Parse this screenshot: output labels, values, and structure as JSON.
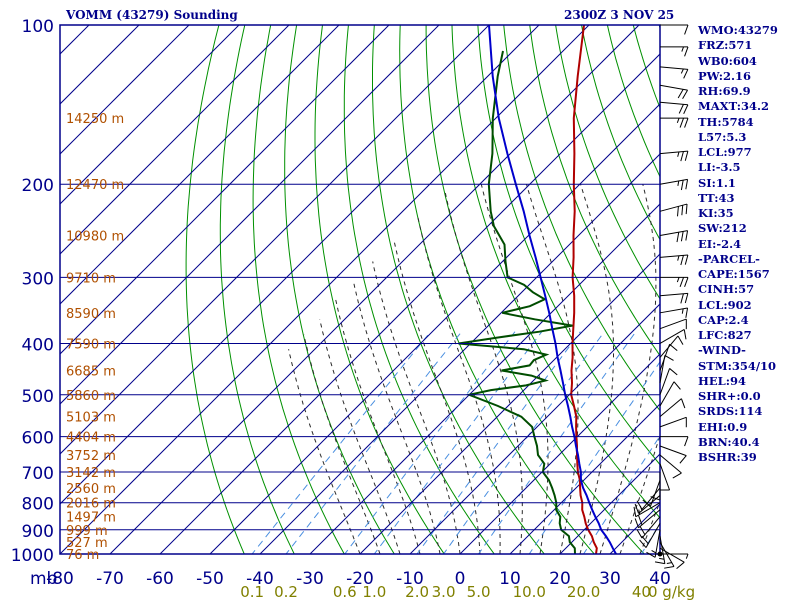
{
  "header": {
    "title": "VOMM (43279) Sounding",
    "time": "2300Z  3 NOV 25"
  },
  "indices": [
    "WMO:43279",
    "FRZ:571",
    "WB0:604",
    "PW:2.16",
    "RH:69.9",
    "MAXT:34.2",
    "TH:5784",
    "L57:5.3",
    "LCL:977",
    "LI:-3.5",
    "SI:1.1",
    "TT:43",
    "KI:35",
    "SW:212",
    "EI:-2.4",
    "-PARCEL-",
    "CAPE:1567",
    "CINH:57",
    "LCL:902",
    "CAP:2.4",
    "LFC:827",
    "-WIND-",
    "STM:354/10",
    "HEL:94",
    "SHR+:0.0",
    "SRDS:114",
    "EHI:0.9",
    "BRN:40.4",
    "BSHR:39"
  ],
  "colors": {
    "frame": "#00008b",
    "isotherm": "#00008b",
    "dry_adiabat": "#009000",
    "moist_adiabat": "#2a2a2a",
    "mixing_ratio": "#4a8fe0",
    "temperature": "#b00000",
    "dewpoint": "#004d00",
    "parcel": "#0000cc",
    "height_label": "#b05000",
    "mixing_label": "#808000",
    "wind": "#000000"
  },
  "chart_data": {
    "type": "skew-t log-p",
    "y_axis": {
      "unit": "mb",
      "range": [
        1000,
        100
      ],
      "scale": "log",
      "ticks": [
        1000,
        900,
        800,
        700,
        600,
        500,
        400,
        300,
        200,
        100
      ]
    },
    "x_axis": {
      "unit": "°C",
      "ticks": [
        -80,
        -70,
        -60,
        -50,
        -40,
        -30,
        -20,
        -10,
        0,
        10,
        20,
        30,
        40
      ],
      "tick_labels": [
        "-80",
        "-70",
        "-60",
        "-50",
        "-40",
        "-30",
        "-20",
        "-10",
        "0",
        "10",
        "20",
        "30",
        "40"
      ],
      "corner_label": "mb",
      "skew_degrees": 45
    },
    "mixing_ratio_labels": [
      "0.1",
      "0.2",
      "0.6",
      "1.0",
      "2.0",
      "3.0",
      "5.0",
      "10.0",
      "20.0",
      "40"
    ],
    "mixing_ratio_values": [
      0.1,
      0.2,
      0.6,
      1.0,
      2.0,
      3.0,
      5.0,
      10.0,
      20.0,
      40.0
    ],
    "mixing_ratio_unit": "g/kg",
    "mixing_ratio_trailing": "0 g/kg",
    "height_labels": [
      {
        "p": 1000,
        "text": "76 m"
      },
      {
        "p": 950,
        "text": "527 m"
      },
      {
        "p": 900,
        "text": "999 m"
      },
      {
        "p": 850,
        "text": "1497 m"
      },
      {
        "p": 800,
        "text": "2016 m"
      },
      {
        "p": 750,
        "text": "2560 m"
      },
      {
        "p": 700,
        "text": "3142 m"
      },
      {
        "p": 650,
        "text": "3752 m"
      },
      {
        "p": 600,
        "text": "4404 m"
      },
      {
        "p": 550,
        "text": "5103 m"
      },
      {
        "p": 500,
        "text": "5860 m"
      },
      {
        "p": 450,
        "text": "6685 m"
      },
      {
        "p": 400,
        "text": "7590 m"
      },
      {
        "p": 350,
        "text": "8590 m"
      },
      {
        "p": 300,
        "text": "9710 m"
      },
      {
        "p": 250,
        "text": "10980 m"
      },
      {
        "p": 200,
        "text": "12470 m"
      },
      {
        "p": 150,
        "text": "14250 m"
      }
    ],
    "series": [
      {
        "key": "temperature",
        "points": [
          [
            1000,
            27.2
          ],
          [
            975,
            26.2
          ],
          [
            950,
            24.4
          ],
          [
            925,
            22.8
          ],
          [
            900,
            20.8
          ],
          [
            875,
            19.0
          ],
          [
            850,
            17.4
          ],
          [
            825,
            15.6
          ],
          [
            800,
            14.2
          ],
          [
            775,
            12.4
          ],
          [
            750,
            10.8
          ],
          [
            725,
            9.2
          ],
          [
            700,
            7.2
          ],
          [
            675,
            5.4
          ],
          [
            650,
            3.6
          ],
          [
            625,
            1.8
          ],
          [
            600,
            -0.2
          ],
          [
            575,
            -2.2
          ],
          [
            550,
            -4.2
          ],
          [
            525,
            -6.8
          ],
          [
            500,
            -9.6
          ],
          [
            475,
            -11.8
          ],
          [
            450,
            -14.4
          ],
          [
            425,
            -16.8
          ],
          [
            400,
            -19.6
          ],
          [
            375,
            -22.4
          ],
          [
            350,
            -25.4
          ],
          [
            325,
            -28.8
          ],
          [
            300,
            -32.8
          ],
          [
            275,
            -36.6
          ],
          [
            250,
            -41.0
          ],
          [
            225,
            -45.6
          ],
          [
            200,
            -51.2
          ],
          [
            175,
            -57.2
          ],
          [
            150,
            -64.4
          ],
          [
            125,
            -72.0
          ],
          [
            100,
            -81.0
          ]
        ]
      },
      {
        "key": "dewpoint",
        "points": [
          [
            1000,
            23.0
          ],
          [
            975,
            21.8
          ],
          [
            950,
            19.6
          ],
          [
            925,
            18.2
          ],
          [
            900,
            15.4
          ],
          [
            875,
            13.8
          ],
          [
            850,
            12.6
          ],
          [
            825,
            10.4
          ],
          [
            800,
            9.0
          ],
          [
            775,
            7.2
          ],
          [
            750,
            5.2
          ],
          [
            725,
            3.0
          ],
          [
            700,
            0.2
          ],
          [
            675,
            -1.2
          ],
          [
            650,
            -4.2
          ],
          [
            625,
            -6.2
          ],
          [
            600,
            -8.6
          ],
          [
            575,
            -11.0
          ],
          [
            550,
            -15.2
          ],
          [
            525,
            -22.0
          ],
          [
            500,
            -30.0
          ],
          [
            490,
            -26.6
          ],
          [
            480,
            -20.5
          ],
          [
            470,
            -17.6
          ],
          [
            460,
            -21.4
          ],
          [
            450,
            -28.4
          ],
          [
            440,
            -23.8
          ],
          [
            430,
            -24.0
          ],
          [
            420,
            -22.6
          ],
          [
            410,
            -28.2
          ],
          [
            400,
            -42.4
          ],
          [
            390,
            -36.0
          ],
          [
            380,
            -28.6
          ],
          [
            370,
            -23.2
          ],
          [
            360,
            -32.0
          ],
          [
            350,
            -39.8
          ],
          [
            340,
            -35.6
          ],
          [
            330,
            -34.0
          ],
          [
            320,
            -37.8
          ],
          [
            310,
            -41.0
          ],
          [
            300,
            -45.8
          ],
          [
            280,
            -49.4
          ],
          [
            260,
            -53.0
          ],
          [
            240,
            -58.8
          ],
          [
            225,
            -62.4
          ],
          [
            200,
            -68.2
          ],
          [
            175,
            -73.6
          ],
          [
            150,
            -80.6
          ],
          [
            125,
            -88.0
          ],
          [
            112,
            -92.0
          ]
        ]
      },
      {
        "key": "parcel",
        "points": [
          [
            1000,
            31.2
          ],
          [
            975,
            29.4
          ],
          [
            950,
            27.6
          ],
          [
            925,
            25.6
          ],
          [
            900,
            23.4
          ],
          [
            875,
            21.6
          ],
          [
            850,
            19.6
          ],
          [
            825,
            17.6
          ],
          [
            800,
            15.6
          ],
          [
            775,
            13.6
          ],
          [
            750,
            11.4
          ],
          [
            725,
            9.4
          ],
          [
            700,
            7.8
          ],
          [
            675,
            5.8
          ],
          [
            650,
            3.8
          ],
          [
            625,
            1.6
          ],
          [
            600,
            -0.6
          ],
          [
            575,
            -3.0
          ],
          [
            550,
            -5.4
          ],
          [
            525,
            -8.0
          ],
          [
            500,
            -10.8
          ],
          [
            475,
            -13.6
          ],
          [
            450,
            -16.6
          ],
          [
            425,
            -19.8
          ],
          [
            400,
            -23.0
          ],
          [
            375,
            -26.6
          ],
          [
            350,
            -30.4
          ],
          [
            325,
            -34.6
          ],
          [
            300,
            -39.2
          ],
          [
            275,
            -44.2
          ],
          [
            250,
            -49.8
          ],
          [
            225,
            -55.8
          ],
          [
            200,
            -62.8
          ],
          [
            175,
            -70.6
          ],
          [
            150,
            -79.4
          ],
          [
            125,
            -89.0
          ],
          [
            100,
            -100.0
          ]
        ]
      }
    ],
    "wind_barbs": [
      {
        "p": 1000,
        "dir": 90,
        "spd": 5
      },
      {
        "p": 975,
        "dir": 120,
        "spd": 10
      },
      {
        "p": 950,
        "dir": 150,
        "spd": 15
      },
      {
        "p": 925,
        "dir": 170,
        "spd": 15
      },
      {
        "p": 900,
        "dir": 190,
        "spd": 15
      },
      {
        "p": 875,
        "dir": 210,
        "spd": 20
      },
      {
        "p": 850,
        "dir": 220,
        "spd": 20
      },
      {
        "p": 825,
        "dir": 230,
        "spd": 20
      },
      {
        "p": 800,
        "dir": 240,
        "spd": 15
      },
      {
        "p": 775,
        "dir": 230,
        "spd": 15
      },
      {
        "p": 750,
        "dir": 220,
        "spd": 10
      },
      {
        "p": 725,
        "dir": 200,
        "spd": 10
      },
      {
        "p": 700,
        "dir": 180,
        "spd": 10
      },
      {
        "p": 675,
        "dir": 160,
        "spd": 10
      },
      {
        "p": 650,
        "dir": 130,
        "spd": 10
      },
      {
        "p": 625,
        "dir": 110,
        "spd": 10
      },
      {
        "p": 600,
        "dir": 90,
        "spd": 10
      },
      {
        "p": 575,
        "dir": 70,
        "spd": 10
      },
      {
        "p": 550,
        "dir": 50,
        "spd": 10
      },
      {
        "p": 525,
        "dir": 30,
        "spd": 10
      },
      {
        "p": 500,
        "dir": 20,
        "spd": 10
      },
      {
        "p": 475,
        "dir": 10,
        "spd": 10
      },
      {
        "p": 450,
        "dir": 20,
        "spd": 10
      },
      {
        "p": 425,
        "dir": 40,
        "spd": 10
      },
      {
        "p": 400,
        "dir": 60,
        "spd": 10
      },
      {
        "p": 375,
        "dir": 70,
        "spd": 10
      },
      {
        "p": 350,
        "dir": 80,
        "spd": 15
      },
      {
        "p": 325,
        "dir": 85,
        "spd": 20
      },
      {
        "p": 300,
        "dir": 90,
        "spd": 25
      },
      {
        "p": 275,
        "dir": 85,
        "spd": 25
      },
      {
        "p": 250,
        "dir": 80,
        "spd": 30
      },
      {
        "p": 225,
        "dir": 75,
        "spd": 30
      },
      {
        "p": 200,
        "dir": 80,
        "spd": 25
      },
      {
        "p": 175,
        "dir": 85,
        "spd": 25
      },
      {
        "p": 150,
        "dir": 90,
        "spd": 25
      },
      {
        "p": 140,
        "dir": 95,
        "spd": 20
      },
      {
        "p": 130,
        "dir": 100,
        "spd": 20
      },
      {
        "p": 120,
        "dir": 95,
        "spd": 15
      },
      {
        "p": 110,
        "dir": 90,
        "spd": 15
      },
      {
        "p": 100,
        "dir": 90,
        "spd": 10
      }
    ],
    "grid": true,
    "legend": "none"
  }
}
